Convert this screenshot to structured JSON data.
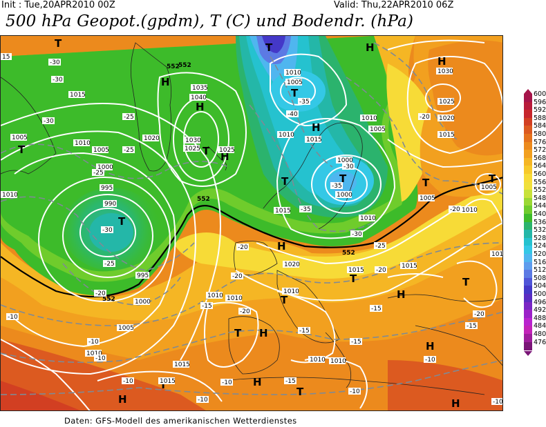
{
  "header": {
    "init": "Init : Tue,20APR2010 00Z",
    "valid": "Valid: Thu,22APR2010 06Z",
    "title": "500 hPa Geopot.(gpdm), T (C) und Bodendr. (hPa)"
  },
  "footer": "Daten: GFS-Modell des amerikanischen Wetterdienstes",
  "legend": {
    "values": [
      "600",
      "596",
      "592",
      "588",
      "584",
      "580",
      "576",
      "572",
      "568",
      "564",
      "560",
      "556",
      "552",
      "548",
      "544",
      "540",
      "536",
      "532",
      "528",
      "524",
      "520",
      "516",
      "512",
      "508",
      "504",
      "500",
      "496",
      "492",
      "488",
      "484",
      "480",
      "476"
    ],
    "colors": [
      "#a6154a",
      "#b81b3a",
      "#c7262c",
      "#d23f22",
      "#dc5a20",
      "#e5721d",
      "#ec8a1d",
      "#f2a01f",
      "#f5b624",
      "#f7c92a",
      "#f7db37",
      "#f0e03c",
      "#c8e23a",
      "#9ad833",
      "#6fcc2c",
      "#3dbb2a",
      "#2bb36d",
      "#24b7a8",
      "#25c2cf",
      "#34c8e6",
      "#4fb6ef",
      "#5e9ced",
      "#5c7ae4",
      "#4f55d8",
      "#4438c8",
      "#5a2cc2",
      "#7a26c4",
      "#9b22c8",
      "#b923ce",
      "#c323b8",
      "#9e1d9c",
      "#7a1577"
    ]
  },
  "labels": {
    "geo_552": "552",
    "geo_552b": "552",
    "geo_552c": "552",
    "geo_552d": "552",
    "geo_552e": "552",
    "geo_552f": "552",
    "geo_552g": "552"
  },
  "pressure_centers": [
    {
      "type": "T",
      "label": "T"
    },
    {
      "type": "H",
      "label": "H"
    }
  ],
  "isobar_labels": [
    "1015",
    "1010",
    "1005",
    "1000",
    "995",
    "990",
    "995",
    "1000",
    "1005",
    "1010",
    "1015",
    "1020",
    "1025",
    "1030",
    "1035",
    "1040",
    "1025",
    "1020",
    "1010",
    "1015",
    "1000",
    "1005",
    "1010",
    "1015",
    "1020",
    "1025",
    "1030",
    "1005",
    "1010",
    "1015",
    "1010",
    "1005",
    "1010",
    "1020",
    "1015",
    "1010",
    "1010",
    "1015",
    "1010",
    "1005",
    "1010",
    "1015",
    "1010"
  ],
  "temp_labels": [
    "-30",
    "-30",
    "-30",
    "-25",
    "-30",
    "-25",
    "-20",
    "-20",
    "-25",
    "-40",
    "-35",
    "-30",
    "-35",
    "-35",
    "-30",
    "-25",
    "-25",
    "-20",
    "-20",
    "-20",
    "-20",
    "-15",
    "-15",
    "-15",
    "-15",
    "-10",
    "-10",
    "-10",
    "-10",
    "-10",
    "-10",
    "-15",
    "-15",
    "-10",
    "-10",
    "-20",
    "-20",
    "-25",
    "-20",
    "-15",
    "-10",
    "-15",
    "-20",
    "-10"
  ]
}
